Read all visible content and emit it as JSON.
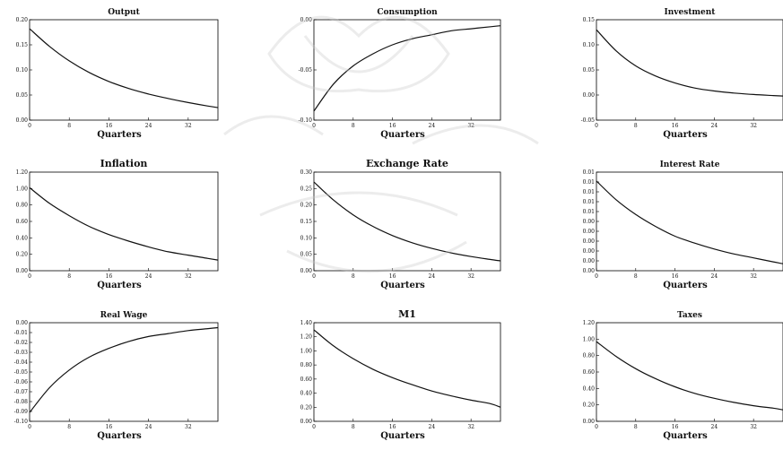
{
  "figure": {
    "xlabel": "Quarters",
    "line_color": "#111111",
    "frame_color": "#000000",
    "x_ticks": [
      "0",
      "8",
      "16",
      "24",
      "32"
    ],
    "x_range": [
      0,
      38
    ]
  },
  "chart_data": [
    {
      "type": "line",
      "title": "Output",
      "xlabel": "Quarters",
      "ylim": [
        0.0,
        0.2
      ],
      "y_tick_labels": [
        "0.20",
        "0.15",
        "0.10",
        "0.05",
        "0.00"
      ],
      "y_tick_values": [
        0.2,
        0.15,
        0.1,
        0.05,
        0.0
      ],
      "x": [
        0,
        4,
        8,
        12,
        16,
        20,
        24,
        28,
        32,
        36,
        38
      ],
      "values": [
        0.182,
        0.147,
        0.118,
        0.095,
        0.077,
        0.063,
        0.052,
        0.043,
        0.035,
        0.028,
        0.025
      ]
    },
    {
      "type": "line",
      "title": "Consumption",
      "xlabel": "Quarters",
      "ylim": [
        -0.1,
        0.0
      ],
      "y_tick_labels": [
        "0.00",
        "-0.05",
        "-0.10"
      ],
      "y_tick_values": [
        0.0,
        -0.05,
        -0.1
      ],
      "x": [
        0,
        4,
        8,
        12,
        16,
        20,
        24,
        28,
        32,
        36,
        38
      ],
      "values": [
        -0.091,
        -0.064,
        -0.046,
        -0.034,
        -0.025,
        -0.019,
        -0.015,
        -0.011,
        -0.009,
        -0.007,
        -0.006
      ]
    },
    {
      "type": "line",
      "title": "Investment",
      "xlabel": "Quarters",
      "ylim": [
        -0.05,
        0.15
      ],
      "y_tick_labels": [
        "0.15",
        "0.10",
        "0.05",
        "0.00",
        "-0.05"
      ],
      "y_tick_values": [
        0.15,
        0.1,
        0.05,
        0.0,
        -0.05
      ],
      "x": [
        0,
        4,
        8,
        12,
        16,
        20,
        24,
        28,
        32,
        36,
        38
      ],
      "values": [
        0.13,
        0.088,
        0.058,
        0.038,
        0.024,
        0.014,
        0.008,
        0.004,
        0.001,
        -0.001,
        -0.002
      ]
    },
    {
      "type": "line",
      "title": "Inflation",
      "xlabel": "Quarters",
      "ylim": [
        0.0,
        1.2
      ],
      "y_tick_labels": [
        "1.20",
        "1.00",
        "0.80",
        "0.60",
        "0.40",
        "0.20",
        "0.00"
      ],
      "y_tick_values": [
        1.2,
        1.0,
        0.8,
        0.6,
        0.4,
        0.2,
        0.0
      ],
      "x": [
        0,
        4,
        8,
        12,
        16,
        20,
        24,
        28,
        32,
        36,
        38
      ],
      "values": [
        1.01,
        0.82,
        0.67,
        0.54,
        0.44,
        0.36,
        0.29,
        0.23,
        0.19,
        0.15,
        0.13
      ]
    },
    {
      "type": "line",
      "title": "Exchange Rate",
      "xlabel": "Quarters",
      "ylim": [
        0.0,
        0.3
      ],
      "y_tick_labels": [
        "0.30",
        "0.25",
        "0.20",
        "0.15",
        "0.10",
        "0.05",
        "0.00"
      ],
      "y_tick_values": [
        0.3,
        0.25,
        0.2,
        0.15,
        0.1,
        0.05,
        0.0
      ],
      "x": [
        0,
        4,
        8,
        12,
        16,
        20,
        24,
        28,
        32,
        36,
        38
      ],
      "values": [
        0.27,
        0.215,
        0.17,
        0.135,
        0.107,
        0.085,
        0.068,
        0.054,
        0.043,
        0.034,
        0.03
      ]
    },
    {
      "type": "line",
      "title": "Interest Rate",
      "xlabel": "Quarters",
      "ylim": [
        0.0,
        0.01
      ],
      "y_tick_labels": [
        "0.01",
        "0.01",
        "0.01",
        "0.01",
        "0.01",
        "0.00",
        "0.00",
        "0.00",
        "0.00",
        "0.00",
        "0.00"
      ],
      "y_tick_values": [
        0.01,
        0.009,
        0.008,
        0.007,
        0.006,
        0.005,
        0.004,
        0.003,
        0.002,
        0.001,
        0.0
      ],
      "x": [
        0,
        4,
        8,
        12,
        16,
        20,
        24,
        28,
        32,
        36,
        38
      ],
      "values": [
        0.0091,
        0.0072,
        0.0057,
        0.0045,
        0.0035,
        0.0028,
        0.0022,
        0.0017,
        0.0013,
        0.0009,
        0.0007
      ]
    },
    {
      "type": "line",
      "title": "Real Wage",
      "xlabel": "Quarters",
      "ylim": [
        -0.1,
        0.0
      ],
      "y_tick_labels": [
        "0.00",
        "-0.01",
        "-0.02",
        "-0.03",
        "-0.04",
        "-0.05",
        "-0.06",
        "-0.07",
        "-0.08",
        "-0.09",
        "-0.10"
      ],
      "y_tick_values": [
        0.0,
        -0.01,
        -0.02,
        -0.03,
        -0.04,
        -0.05,
        -0.06,
        -0.07,
        -0.08,
        -0.09,
        -0.1
      ],
      "x": [
        0,
        4,
        8,
        12,
        16,
        20,
        24,
        28,
        32,
        36,
        38
      ],
      "values": [
        -0.091,
        -0.066,
        -0.048,
        -0.035,
        -0.026,
        -0.019,
        -0.014,
        -0.011,
        -0.008,
        -0.006,
        -0.005
      ]
    },
    {
      "type": "line",
      "title": "M1",
      "xlabel": "Quarters",
      "ylim": [
        0.0,
        1.4
      ],
      "y_tick_labels": [
        "1.40",
        "1.20",
        "1.00",
        "0.80",
        "0.60",
        "0.40",
        "0.20",
        "0.00"
      ],
      "y_tick_values": [
        1.4,
        1.2,
        1.0,
        0.8,
        0.6,
        0.4,
        0.2,
        0.0
      ],
      "x": [
        0,
        4,
        8,
        12,
        16,
        20,
        24,
        28,
        32,
        36,
        38
      ],
      "values": [
        1.3,
        1.07,
        0.89,
        0.74,
        0.62,
        0.52,
        0.43,
        0.36,
        0.3,
        0.25,
        0.2
      ]
    },
    {
      "type": "line",
      "title": "Taxes",
      "xlabel": "Quarters",
      "ylim": [
        0.0,
        1.2
      ],
      "y_tick_labels": [
        "1.20",
        "1.00",
        "0.80",
        "0.60",
        "0.40",
        "0.20",
        "0.00"
      ],
      "y_tick_values": [
        1.2,
        1.0,
        0.8,
        0.6,
        0.4,
        0.2,
        0.0
      ],
      "x": [
        0,
        4,
        8,
        12,
        16,
        20,
        24,
        28,
        32,
        36,
        38
      ],
      "values": [
        0.97,
        0.79,
        0.64,
        0.52,
        0.42,
        0.34,
        0.28,
        0.23,
        0.19,
        0.16,
        0.14
      ]
    }
  ]
}
